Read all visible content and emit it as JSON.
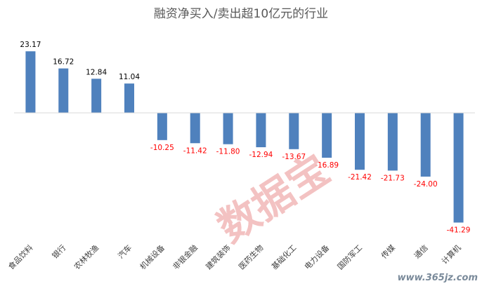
{
  "chart_data": {
    "type": "bar",
    "title": "融资净买入/卖出超10亿元的行业",
    "xlabel": "",
    "ylabel": "",
    "categories": [
      "食品饮料",
      "银行",
      "农林牧渔",
      "汽车",
      "机械设备",
      "非银金融",
      "建筑装饰",
      "医药生物",
      "基础化工",
      "电力设备",
      "国防军工",
      "传媒",
      "通信",
      "计算机"
    ],
    "values": [
      23.17,
      16.72,
      12.84,
      11.04,
      -10.25,
      -11.42,
      -11.8,
      -12.94,
      -13.67,
      -16.89,
      -21.42,
      -21.73,
      -24.0,
      -41.29
    ],
    "value_labels": [
      "23.17",
      "16.72",
      "12.84",
      "11.04",
      "-10.25",
      "-11.42",
      "-11.80",
      "-12.94",
      "-13.67",
      "-16.89",
      "-21.42",
      "-21.73",
      "-24.00",
      "-41.29"
    ],
    "ylim": [
      -45,
      30
    ],
    "grid": false,
    "legend": "none",
    "colors": {
      "bar": "#4f81bd",
      "positive_label": "#000000",
      "negative_label": "#ff0000",
      "axis": "#d9d9d9"
    }
  },
  "watermark": {
    "text": "数据宝"
  },
  "site_badge": {
    "text": "www.365jz.com"
  }
}
